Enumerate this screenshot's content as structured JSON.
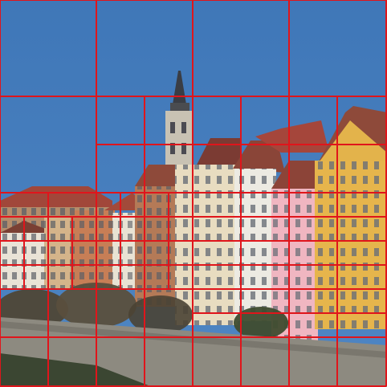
{
  "scene": {
    "subject": "riverside-old-town-houses-with-church-tower",
    "sky_color": "#4f86c3",
    "sky_color_top": "#3f77b8",
    "wall_color": "#8d8a80",
    "water_color": "#3b4632"
  },
  "overlay": {
    "grid_color": "#e0151b",
    "grid_line_count_vertical": 3,
    "grid_line_count_horizontal": 3
  }
}
